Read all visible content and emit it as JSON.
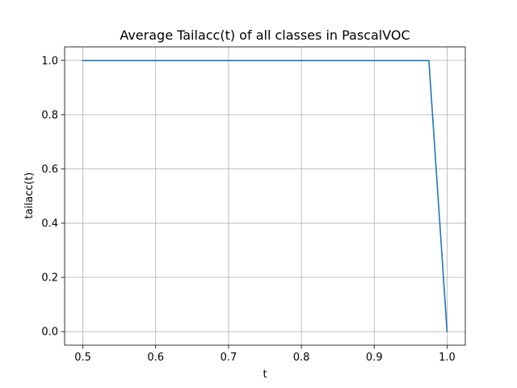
{
  "chart_data": {
    "type": "line",
    "title": "Average Tailacc(t) of all classes in PascalVOC",
    "xlabel": "t",
    "ylabel": "tailacc(t)",
    "xlim": [
      0.475,
      1.025
    ],
    "ylim": [
      -0.05,
      1.05
    ],
    "xticks": [
      0.5,
      0.6,
      0.7,
      0.8,
      0.9,
      1.0
    ],
    "xtick_labels": [
      "0.5",
      "0.6",
      "0.7",
      "0.8",
      "0.9",
      "1.0"
    ],
    "yticks": [
      0.0,
      0.2,
      0.4,
      0.6,
      0.8,
      1.0
    ],
    "ytick_labels": [
      "0.0",
      "0.2",
      "0.4",
      "0.6",
      "0.8",
      "1.0"
    ],
    "grid": true,
    "series": [
      {
        "color": "#1f77b4",
        "x": [
          0.5,
          0.525,
          0.55,
          0.575,
          0.6,
          0.625,
          0.65,
          0.675,
          0.7,
          0.725,
          0.75,
          0.775,
          0.8,
          0.825,
          0.85,
          0.875,
          0.9,
          0.925,
          0.95,
          0.975,
          1.0
        ],
        "y": [
          1.0,
          1.0,
          1.0,
          1.0,
          1.0,
          1.0,
          1.0,
          1.0,
          1.0,
          1.0,
          1.0,
          1.0,
          1.0,
          1.0,
          1.0,
          1.0,
          1.0,
          1.0,
          1.0,
          1.0,
          0.0
        ]
      }
    ]
  }
}
